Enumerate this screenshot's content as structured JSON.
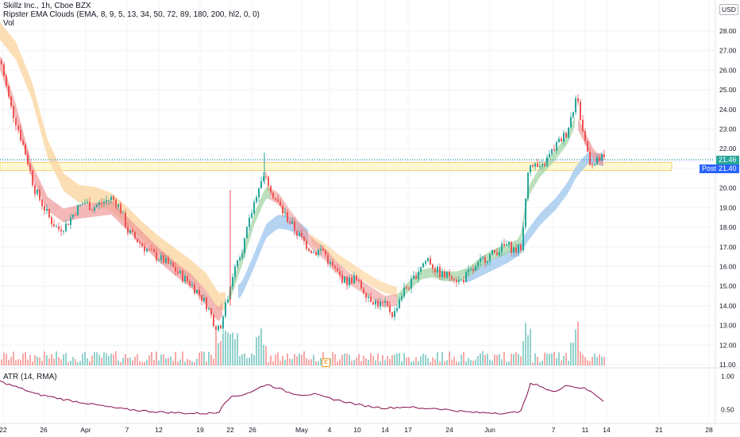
{
  "header": {
    "symbol_line": "Skillz Inc., 1h, Cboe BZX",
    "ema_clouds_line": "Ripster EMA Clouds (EMA, 8, 9, 5, 13, 34, 50, 72, 89, 180, 200, hl2, 0, 0)",
    "volume_line": "Vol"
  },
  "currency_badge": "USD",
  "price_tags": {
    "last": "21.46",
    "post_label": "Post",
    "post": "21.40"
  },
  "atr_legend": "ATR (14, RMA)",
  "earnings_marker": "E",
  "colors": {
    "up": "#26a69a",
    "down": "#ef5350",
    "cloud_orange": "#fcd8a8",
    "cloud_blue": "#a7cdf0",
    "cloud_red": "#ef9a9a",
    "cloud_green": "#a5d6a7",
    "zone_fill": "#fff59d",
    "atr_line": "#880e4f"
  },
  "chart_data": {
    "type": "candlestick",
    "price_axis": {
      "ticks": [
        "28.00",
        "27.00",
        "26.00",
        "25.00",
        "24.00",
        "23.00",
        "22.00",
        "21.00",
        "20.00",
        "19.00",
        "18.00",
        "17.00",
        "16.00",
        "15.00",
        "14.00",
        "13.00",
        "12.00",
        "11.00"
      ],
      "ylim": [
        11,
        28.2
      ]
    },
    "time_axis": {
      "ticks": [
        "22",
        "26",
        "Apr",
        "7",
        "12",
        "19",
        "22",
        "26",
        "May",
        "4",
        "10",
        "14",
        "17",
        "24",
        "Jun",
        "7",
        "11",
        "14",
        "21",
        "28"
      ]
    },
    "atr_axis": {
      "ticks": [
        "1.00",
        "0.50"
      ],
      "ylim": [
        0.3,
        1.1
      ]
    },
    "highlight_zone": [
      20.9,
      21.3
    ],
    "last_price": 21.46,
    "post_price": 21.4,
    "price_path": [
      [
        0,
        26.5
      ],
      [
        12,
        24.2
      ],
      [
        22,
        23.0
      ],
      [
        33,
        21.5
      ],
      [
        42,
        20.0
      ],
      [
        52,
        19.2
      ],
      [
        62,
        18.4
      ],
      [
        72,
        17.9
      ],
      [
        82,
        18.1
      ],
      [
        95,
        18.9
      ],
      [
        105,
        19.3
      ],
      [
        115,
        19.0
      ],
      [
        125,
        19.2
      ],
      [
        140,
        19.5
      ],
      [
        150,
        19.0
      ],
      [
        160,
        17.8
      ],
      [
        170,
        17.4
      ],
      [
        180,
        17.0
      ],
      [
        192,
        16.6
      ],
      [
        205,
        16.3
      ],
      [
        215,
        16.0
      ],
      [
        228,
        15.5
      ],
      [
        240,
        15.1
      ],
      [
        250,
        14.6
      ],
      [
        260,
        14.0
      ],
      [
        268,
        13.2
      ],
      [
        275,
        12.7
      ],
      [
        280,
        13.5
      ],
      [
        287,
        14.6
      ],
      [
        295,
        16.2
      ],
      [
        305,
        17.0
      ],
      [
        315,
        18.6
      ],
      [
        323,
        19.9
      ],
      [
        330,
        20.7
      ],
      [
        338,
        20.2
      ],
      [
        345,
        19.5
      ],
      [
        355,
        18.8
      ],
      [
        365,
        18.2
      ],
      [
        375,
        17.6
      ],
      [
        385,
        17.1
      ],
      [
        395,
        16.7
      ],
      [
        405,
        16.9
      ],
      [
        415,
        16.1
      ],
      [
        425,
        15.6
      ],
      [
        435,
        15.2
      ],
      [
        445,
        15.4
      ],
      [
        455,
        14.9
      ],
      [
        465,
        14.4
      ],
      [
        475,
        14.1
      ],
      [
        485,
        14.0
      ],
      [
        495,
        13.5
      ],
      [
        500,
        14.2
      ],
      [
        508,
        14.8
      ],
      [
        518,
        15.2
      ],
      [
        528,
        16.0
      ],
      [
        538,
        16.4
      ],
      [
        548,
        15.8
      ],
      [
        558,
        15.5
      ],
      [
        568,
        15.6
      ],
      [
        578,
        15.2
      ],
      [
        588,
        15.6
      ],
      [
        598,
        15.9
      ],
      [
        608,
        16.4
      ],
      [
        618,
        16.6
      ],
      [
        628,
        16.9
      ],
      [
        638,
        17.1
      ],
      [
        648,
        16.8
      ],
      [
        656,
        17.0
      ],
      [
        661,
        19.5
      ],
      [
        666,
        21.4
      ],
      [
        672,
        21.2
      ],
      [
        680,
        20.9
      ],
      [
        690,
        21.6
      ],
      [
        700,
        22.2
      ],
      [
        706,
        22.5
      ],
      [
        712,
        22.8
      ],
      [
        718,
        23.6
      ],
      [
        722,
        24.2
      ],
      [
        726,
        24.6
      ],
      [
        732,
        23.1
      ],
      [
        738,
        22.0
      ],
      [
        742,
        21.4
      ],
      [
        748,
        21.2
      ],
      [
        755,
        21.5
      ],
      [
        760,
        21.46
      ]
    ],
    "ema_fast_path": [
      [
        0,
        26.4
      ],
      [
        20,
        23.9
      ],
      [
        40,
        20.9
      ],
      [
        60,
        19.2
      ],
      [
        80,
        18.6
      ],
      [
        100,
        18.8
      ],
      [
        120,
        18.9
      ],
      [
        140,
        19.0
      ],
      [
        160,
        18.2
      ],
      [
        180,
        17.4
      ],
      [
        200,
        16.6
      ],
      [
        220,
        15.9
      ],
      [
        240,
        15.3
      ],
      [
        260,
        14.4
      ],
      [
        275,
        13.5
      ],
      [
        290,
        14.6
      ],
      [
        305,
        16.4
      ],
      [
        320,
        18.4
      ],
      [
        335,
        19.8
      ],
      [
        350,
        19.5
      ],
      [
        365,
        18.6
      ],
      [
        380,
        17.8
      ],
      [
        395,
        17.1
      ],
      [
        410,
        16.6
      ],
      [
        425,
        15.9
      ],
      [
        440,
        15.4
      ],
      [
        455,
        15.0
      ],
      [
        470,
        14.6
      ],
      [
        485,
        14.2
      ],
      [
        500,
        14.3
      ],
      [
        515,
        15.0
      ],
      [
        530,
        15.6
      ],
      [
        545,
        15.7
      ],
      [
        560,
        15.5
      ],
      [
        575,
        15.5
      ],
      [
        590,
        15.7
      ],
      [
        605,
        16.2
      ],
      [
        620,
        16.6
      ],
      [
        640,
        16.9
      ],
      [
        655,
        17.2
      ],
      [
        665,
        19.8
      ],
      [
        680,
        20.8
      ],
      [
        700,
        21.7
      ],
      [
        715,
        22.5
      ],
      [
        725,
        23.5
      ],
      [
        740,
        22.3
      ],
      [
        750,
        21.5
      ],
      [
        760,
        21.45
      ]
    ],
    "ema_slow_path": [
      [
        0,
        28.0
      ],
      [
        20,
        27.0
      ],
      [
        40,
        25.0
      ],
      [
        60,
        22.0
      ],
      [
        80,
        20.3
      ],
      [
        100,
        19.7
      ],
      [
        120,
        19.6
      ],
      [
        140,
        19.3
      ],
      [
        160,
        18.6
      ],
      [
        180,
        17.8
      ],
      [
        200,
        17.1
      ],
      [
        220,
        16.5
      ],
      [
        240,
        15.9
      ],
      [
        260,
        15.2
      ],
      [
        275,
        14.2
      ],
      [
        290,
        14.3
      ],
      [
        305,
        14.9
      ],
      [
        320,
        16.3
      ],
      [
        335,
        17.8
      ],
      [
        350,
        18.3
      ],
      [
        365,
        18.2
      ],
      [
        380,
        17.8
      ],
      [
        395,
        17.3
      ],
      [
        410,
        16.9
      ],
      [
        425,
        16.4
      ],
      [
        440,
        16.0
      ],
      [
        455,
        15.6
      ],
      [
        470,
        15.2
      ],
      [
        485,
        14.9
      ],
      [
        500,
        14.7
      ],
      [
        515,
        14.9
      ],
      [
        530,
        15.2
      ],
      [
        545,
        15.4
      ],
      [
        560,
        15.4
      ],
      [
        575,
        15.4
      ],
      [
        590,
        15.5
      ],
      [
        605,
        15.8
      ],
      [
        620,
        16.1
      ],
      [
        640,
        16.5
      ],
      [
        655,
        16.9
      ],
      [
        665,
        17.6
      ],
      [
        680,
        18.4
      ],
      [
        700,
        19.2
      ],
      [
        715,
        20.0
      ],
      [
        725,
        20.8
      ],
      [
        740,
        21.5
      ],
      [
        750,
        21.5
      ],
      [
        760,
        21.4
      ]
    ],
    "atr_path": [
      [
        0,
        0.92
      ],
      [
        15,
        0.86
      ],
      [
        30,
        0.8
      ],
      [
        45,
        0.73
      ],
      [
        60,
        0.7
      ],
      [
        80,
        0.65
      ],
      [
        100,
        0.61
      ],
      [
        120,
        0.57
      ],
      [
        140,
        0.53
      ],
      [
        160,
        0.5
      ],
      [
        180,
        0.48
      ],
      [
        200,
        0.46
      ],
      [
        220,
        0.45
      ],
      [
        240,
        0.44
      ],
      [
        260,
        0.44
      ],
      [
        275,
        0.45
      ],
      [
        282,
        0.6
      ],
      [
        290,
        0.68
      ],
      [
        305,
        0.72
      ],
      [
        320,
        0.78
      ],
      [
        335,
        0.88
      ],
      [
        350,
        0.82
      ],
      [
        365,
        0.75
      ],
      [
        380,
        0.72
      ],
      [
        395,
        0.73
      ],
      [
        410,
        0.68
      ],
      [
        425,
        0.64
      ],
      [
        440,
        0.6
      ],
      [
        455,
        0.56
      ],
      [
        470,
        0.54
      ],
      [
        485,
        0.52
      ],
      [
        500,
        0.53
      ],
      [
        515,
        0.54
      ],
      [
        530,
        0.51
      ],
      [
        545,
        0.52
      ],
      [
        560,
        0.5
      ],
      [
        575,
        0.48
      ],
      [
        590,
        0.46
      ],
      [
        605,
        0.45
      ],
      [
        620,
        0.45
      ],
      [
        640,
        0.44
      ],
      [
        655,
        0.47
      ],
      [
        661,
        0.62
      ],
      [
        668,
        0.88
      ],
      [
        680,
        0.86
      ],
      [
        690,
        0.79
      ],
      [
        700,
        0.76
      ],
      [
        712,
        0.87
      ],
      [
        722,
        0.84
      ],
      [
        735,
        0.82
      ],
      [
        748,
        0.74
      ],
      [
        760,
        0.63
      ]
    ]
  }
}
